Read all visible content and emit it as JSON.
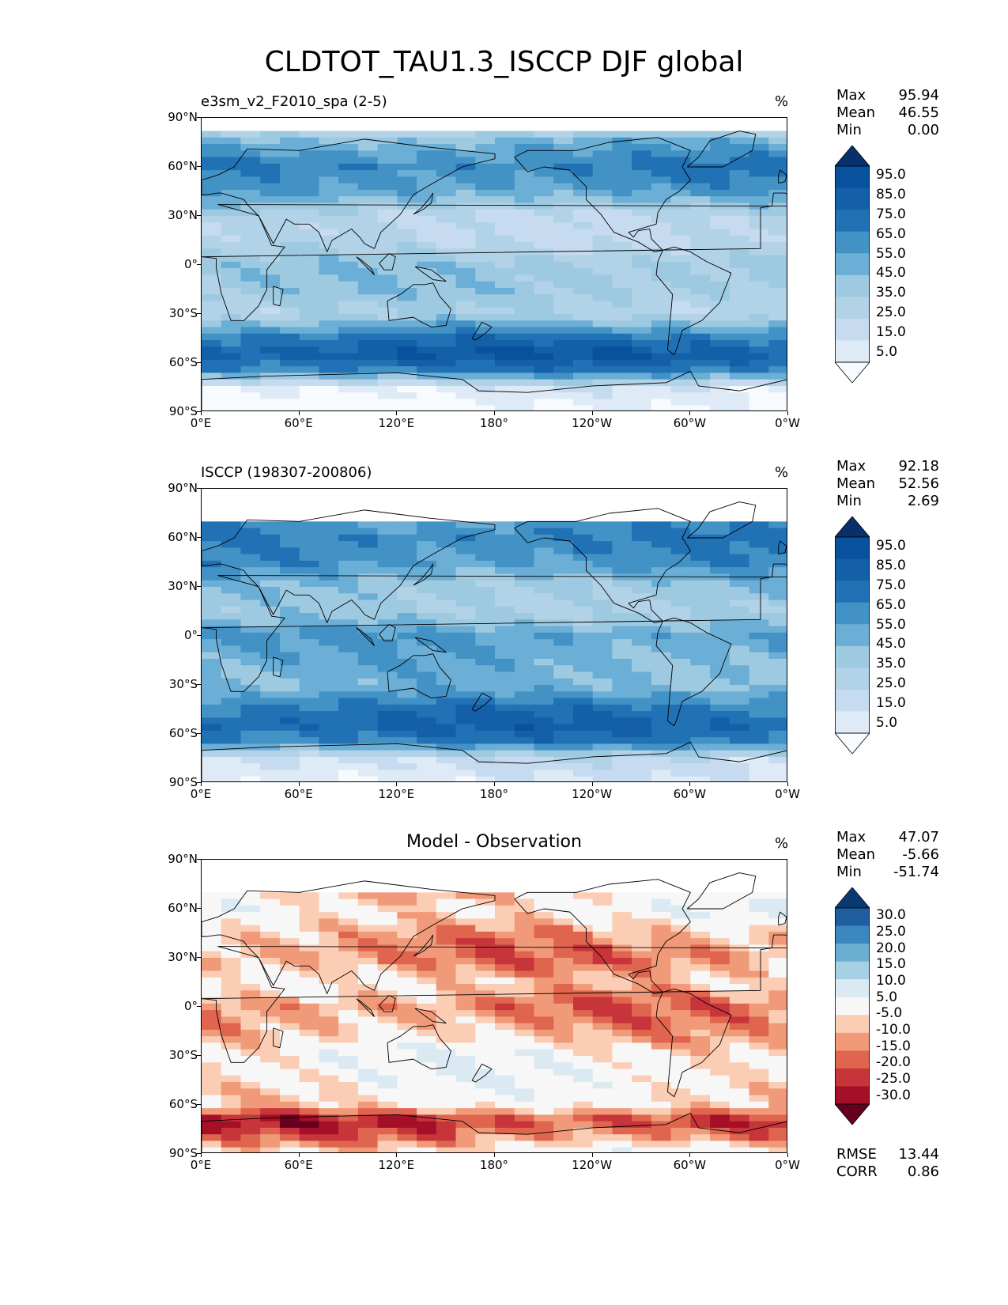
{
  "figure": {
    "title": "CLDTOT_TAU1.3_ISCCP DJF global"
  },
  "lat_ticks": [
    "90°N",
    "60°N",
    "30°N",
    "0°",
    "30°S",
    "60°S",
    "90°S"
  ],
  "lon_ticks": [
    "0°E",
    "60°E",
    "120°E",
    "180°",
    "120°W",
    "60°W",
    "0°W"
  ],
  "colors": {
    "blues": [
      "#f7fbff",
      "#deebf7",
      "#c6dbef",
      "#b2d2e8",
      "#9ecae1",
      "#6baed6",
      "#4292c6",
      "#2171b5",
      "#1460a8",
      "#08519c",
      "#08306b"
    ],
    "diverging": [
      "#67001f",
      "#a50f27",
      "#c7353a",
      "#e0654f",
      "#f09a79",
      "#fbcdb4",
      "#f7f7f7",
      "#dbeaf2",
      "#a8d0e4",
      "#6aaed2",
      "#3b87bf",
      "#1f5ea0",
      "#0b3a73"
    ]
  },
  "chart_data": [
    {
      "type": "heatmap",
      "title": "e3sm_v2_F2010_spa (2-5)",
      "units": "%",
      "stats": {
        "Max": "95.94",
        "Mean": "46.55",
        "Min": "0.00"
      },
      "colorbar": [
        "95.0",
        "85.0",
        "75.0",
        "65.0",
        "55.0",
        "45.0",
        "35.0",
        "25.0",
        "15.0",
        "5.0"
      ],
      "xlim": [
        0,
        360
      ],
      "ylim": [
        -90,
        90
      ],
      "zonal_profile": [
        [
          90,
          10
        ],
        [
          75,
          55
        ],
        [
          60,
          70
        ],
        [
          45,
          60
        ],
        [
          30,
          30
        ],
        [
          15,
          30
        ],
        [
          0,
          45
        ],
        [
          -15,
          45
        ],
        [
          -30,
          35
        ],
        [
          -45,
          75
        ],
        [
          -55,
          88
        ],
        [
          -65,
          70
        ],
        [
          -75,
          15
        ],
        [
          -90,
          5
        ]
      ]
    },
    {
      "type": "heatmap",
      "title": "ISCCP (198307-200806)",
      "units": "%",
      "stats": {
        "Max": "92.18",
        "Mean": "52.56",
        "Min": "2.69"
      },
      "colorbar": [
        "95.0",
        "85.0",
        "75.0",
        "65.0",
        "55.0",
        "45.0",
        "35.0",
        "25.0",
        "15.0",
        "5.0"
      ],
      "xlim": [
        0,
        360
      ],
      "ylim": [
        -90,
        90
      ],
      "zonal_profile": [
        [
          90,
          0
        ],
        [
          70,
          0
        ],
        [
          68,
          65
        ],
        [
          60,
          70
        ],
        [
          45,
          65
        ],
        [
          30,
          45
        ],
        [
          15,
          40
        ],
        [
          0,
          60
        ],
        [
          -15,
          55
        ],
        [
          -30,
          50
        ],
        [
          -45,
          75
        ],
        [
          -55,
          82
        ],
        [
          -65,
          70
        ],
        [
          -75,
          25
        ],
        [
          -90,
          15
        ]
      ]
    },
    {
      "type": "heatmap",
      "title": "Model - Observation",
      "units": "%",
      "stats": {
        "Max": "47.07",
        "Mean": "-5.66",
        "Min": "-51.74"
      },
      "extra_stats": {
        "RMSE": "13.44",
        "CORR": "0.86"
      },
      "colorbar": [
        "30.0",
        "25.0",
        "20.0",
        "15.0",
        "10.0",
        "5.0",
        "-5.0",
        "-10.0",
        "-15.0",
        "-20.0",
        "-25.0",
        "-30.0"
      ],
      "xlim": [
        0,
        360
      ],
      "ylim": [
        -90,
        90
      ],
      "zonal_profile": [
        [
          90,
          0
        ],
        [
          70,
          0
        ],
        [
          68,
          -5
        ],
        [
          60,
          0
        ],
        [
          45,
          -10
        ],
        [
          30,
          -15
        ],
        [
          15,
          -5
        ],
        [
          0,
          -15
        ],
        [
          -15,
          -10
        ],
        [
          -30,
          0
        ],
        [
          -45,
          0
        ],
        [
          -60,
          -5
        ],
        [
          -70,
          -25
        ],
        [
          -80,
          -15
        ],
        [
          -90,
          0
        ]
      ]
    }
  ]
}
